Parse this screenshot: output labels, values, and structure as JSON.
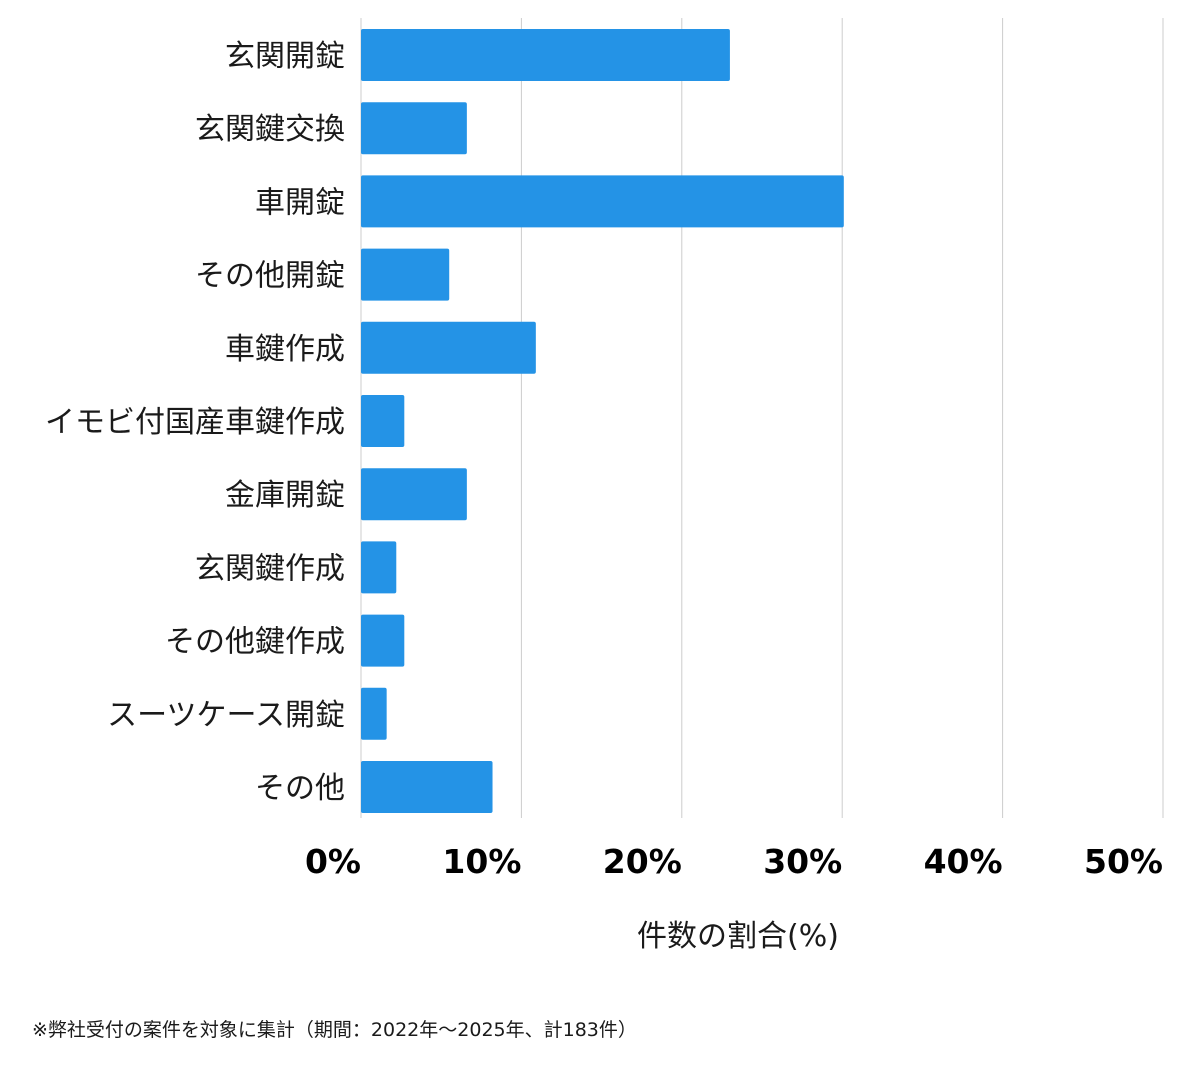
{
  "chart_data": {
    "type": "bar",
    "orientation": "horizontal",
    "categories": [
      "玄関開錠",
      "玄関鍵交換",
      "車開錠",
      "その他開錠",
      "車鍵作成",
      "イモビ付国産車鍵作成",
      "金庫開錠",
      "玄関鍵作成",
      "その他鍵作成",
      "スーツケース開錠",
      "その他"
    ],
    "values": [
      23.0,
      6.6,
      30.1,
      5.5,
      10.9,
      2.7,
      6.6,
      2.2,
      2.7,
      1.6,
      8.2
    ],
    "xlabel": "件数の割合(%)",
    "ylabel": "",
    "xlim": [
      0,
      50
    ],
    "x_ticks": [
      0,
      10,
      20,
      30,
      40,
      50
    ],
    "x_tick_labels": [
      "0%",
      "10%",
      "20%",
      "30%",
      "40%",
      "50%"
    ],
    "grid": "vertical",
    "bar_color": "#2493e6",
    "grid_color": "#cccccc"
  },
  "footnote": "※弊社受付の案件を対象に集計（期間：2022年〜2025年、計183件）"
}
